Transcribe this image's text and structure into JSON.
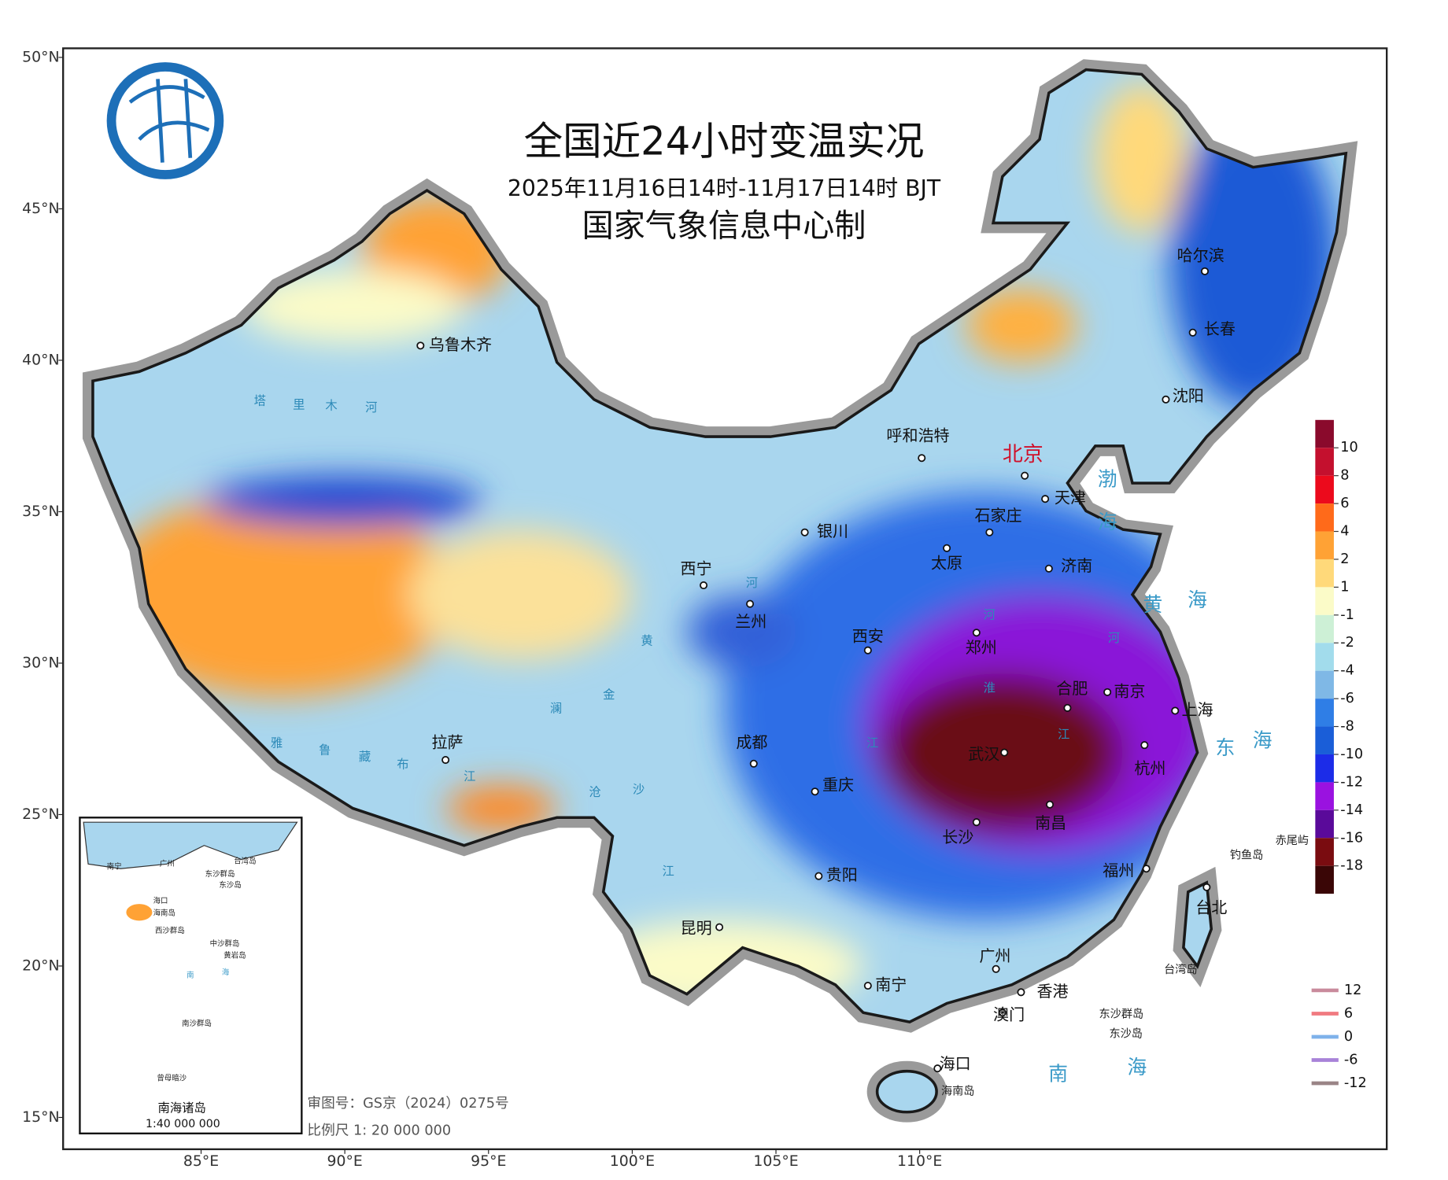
{
  "header": {
    "title": "全国近24小时变温实况",
    "subtitle": "2025年11月16日14时-11月17日14时 BJT",
    "producer": "国家气象信息中心制"
  },
  "frame": {
    "lon_range": [
      80.2,
      126.25
    ],
    "lat_range": [
      13.95,
      50.3
    ],
    "lat_ticks": [
      {
        "value": 50,
        "label": "50°N"
      },
      {
        "value": 45,
        "label": "45°N"
      },
      {
        "value": 40,
        "label": "40°N"
      },
      {
        "value": 35,
        "label": "35°N"
      },
      {
        "value": 30,
        "label": "30°N"
      },
      {
        "value": 25,
        "label": "25°N"
      },
      {
        "value": 20,
        "label": "20°N"
      },
      {
        "value": 15,
        "label": "15°N"
      }
    ],
    "lon_ticks": [
      {
        "value": 85,
        "label": "85°E"
      },
      {
        "value": 90,
        "label": "90°E"
      },
      {
        "value": 95,
        "label": "95°E"
      },
      {
        "value": 100,
        "label": "100°E"
      },
      {
        "value": 105,
        "label": "105°E"
      },
      {
        "value": 110,
        "label": "110°E"
      }
    ]
  },
  "cities": [
    "乌鲁木齐",
    "呼和浩特",
    "北京",
    "天津",
    "石家庄",
    "银川",
    "太原",
    "济南",
    "西宁",
    "兰州",
    "郑州",
    "西安",
    "合肥",
    "南京",
    "上海",
    "武汉",
    "杭州",
    "拉萨",
    "成都",
    "重庆",
    "南昌",
    "长沙",
    "贵阳",
    "福州",
    "台北",
    "昆明",
    "广州",
    "南宁",
    "香港",
    "澳门",
    "海口",
    "哈尔滨",
    "长春",
    "沈阳"
  ],
  "seas": [
    "渤",
    "海",
    "黄",
    "海",
    "东",
    "海",
    "南",
    "海"
  ],
  "rivers": [
    "塔",
    "里",
    "木",
    "河",
    "雅",
    "鲁",
    "藏",
    "布",
    "江",
    "金",
    "沙",
    "澜",
    "沧",
    "黄",
    "河",
    "河",
    "淮",
    "江",
    "江",
    "江",
    "河"
  ],
  "islands": [
    "钓鱼岛",
    "赤尾屿",
    "台湾岛",
    "东沙群岛",
    "东沙岛",
    "海南岛"
  ],
  "inset": {
    "title": "南海诸岛",
    "scale": "1:40 000 000",
    "labels": [
      "南宁",
      "广州",
      "东沙群岛",
      "东沙岛",
      "台湾岛",
      "海口",
      "海南岛",
      "西沙群岛",
      "中沙群岛",
      "黄岩岛",
      "南",
      "海",
      "南沙群岛",
      "曾母暗沙"
    ]
  },
  "footer": {
    "review": "审图号：GS京（2024）0275号",
    "scale": "比例尺 1: 20 000 000"
  },
  "legend": {
    "ticks": [
      10,
      8,
      6,
      4,
      2,
      1,
      -1,
      -2,
      -4,
      -6,
      -8,
      -10,
      -12,
      -14,
      -16,
      -18
    ],
    "colors": [
      "#8a0a2c",
      "#c4102e",
      "#ec0a1c",
      "#ff6a1a",
      "#ffa235",
      "#ffd97a",
      "#fbfbc8",
      "#cdf0d6",
      "#a2dcec",
      "#7fb8e6",
      "#2f7ee6",
      "#1a5ed8",
      "#1c2ce8",
      "#9a12e0",
      "#5a0a9a",
      "#7a0c10",
      "#3a0606"
    ]
  },
  "contour_legend": {
    "values": [
      12,
      6,
      0,
      -6,
      -12
    ],
    "colors": [
      "#c98a9c",
      "#f07a80",
      "#7fb2ea",
      "#a882d8",
      "#9a8486"
    ]
  }
}
